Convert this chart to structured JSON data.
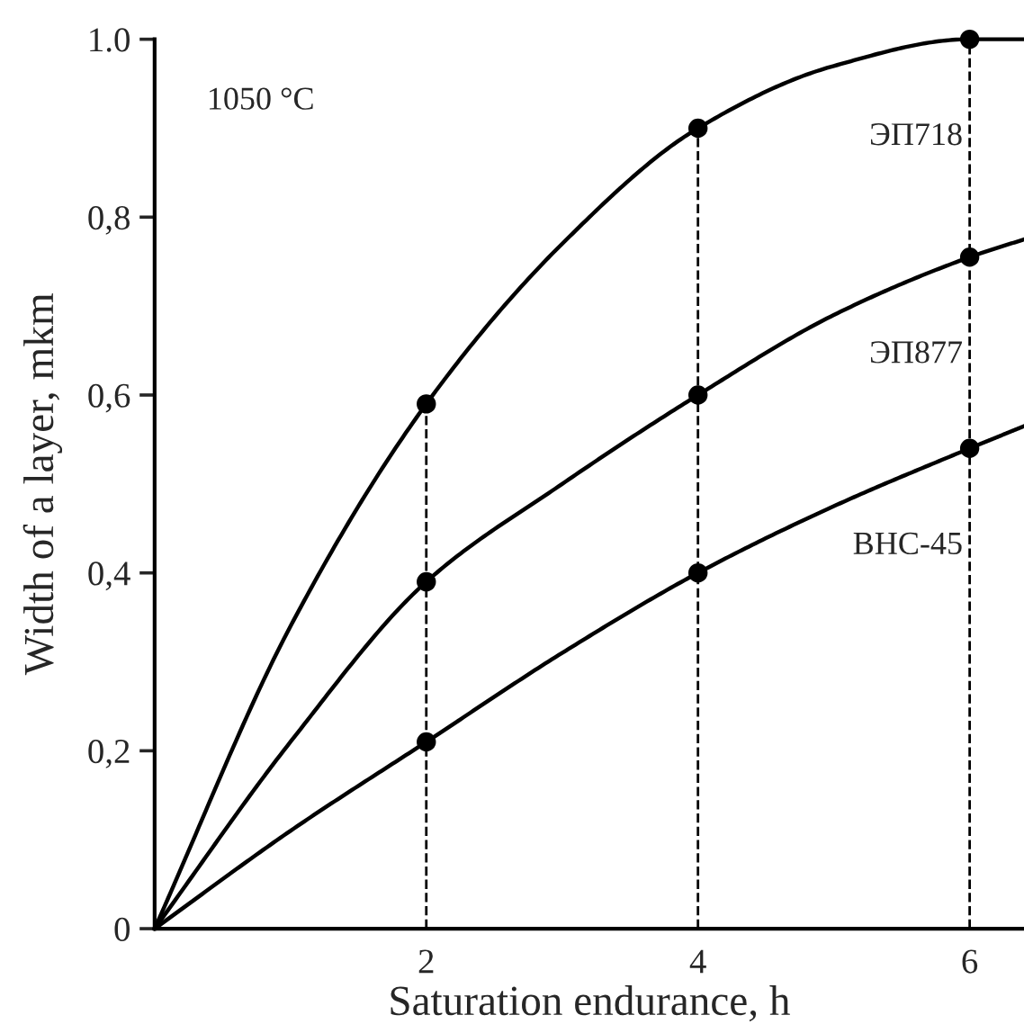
{
  "chart_data": {
    "type": "line",
    "xlabel": "Saturation endurance, h",
    "ylabel": "Width of a layer, mkm",
    "annotations": [
      "1050 °C"
    ],
    "xlim": [
      0,
      6.4
    ],
    "ylim": [
      0,
      1.0
    ],
    "xticks": [
      2,
      4,
      6
    ],
    "yticks": [
      0,
      {
        "value": 0.2,
        "label": "0,2"
      },
      {
        "value": 0.4,
        "label": "0,4"
      },
      {
        "value": 0.6,
        "label": "0,6"
      },
      {
        "value": 0.8,
        "label": "0,8"
      },
      {
        "value": 1.0,
        "label": "1.0"
      }
    ],
    "grid": false,
    "legend": false,
    "line_style": "solid",
    "ref_lines": [
      {
        "axis": "x",
        "value": 2,
        "line_style": "dashed"
      },
      {
        "axis": "x",
        "value": 4,
        "line_style": "dashed"
      },
      {
        "axis": "x",
        "value": 6,
        "line_style": "dashed"
      }
    ],
    "series": [
      {
        "name": "ЭП718",
        "color": "#000000",
        "x": [
          0,
          1,
          2,
          3,
          4,
          5,
          6,
          6.4
        ],
        "values": [
          0,
          0.34,
          0.59,
          0.77,
          0.9,
          0.97,
          1.0,
          1.0
        ]
      },
      {
        "name": "ЭП877",
        "color": "#000000",
        "x": [
          0,
          1,
          2,
          3,
          4,
          5,
          6,
          6.4
        ],
        "values": [
          0,
          0.21,
          0.39,
          0.5,
          0.6,
          0.69,
          0.755,
          0.775
        ]
      },
      {
        "name": "ВНС-45",
        "color": "#000000",
        "x": [
          0,
          1,
          2,
          3,
          4,
          5,
          6,
          6.4
        ],
        "values": [
          0,
          0.11,
          0.21,
          0.31,
          0.4,
          0.475,
          0.54,
          0.565
        ]
      },
      {
        "type": "scatter",
        "marker": "circle",
        "color": "#000000",
        "x": [
          2,
          4,
          6,
          2,
          4,
          6,
          2,
          4,
          6
        ],
        "values": [
          0.59,
          0.9,
          1.0,
          0.39,
          0.6,
          0.755,
          0.21,
          0.4,
          0.54
        ]
      }
    ]
  }
}
